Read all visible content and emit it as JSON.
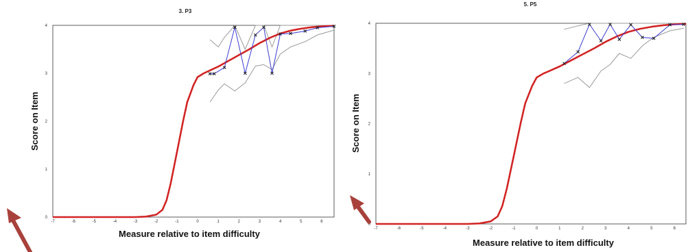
{
  "chart_data": [
    {
      "type": "line",
      "title": "3. P3",
      "xlabel": "Measure relative to item difficulty",
      "ylabel": "Score on Item",
      "xlim": [
        -7,
        6.6
      ],
      "ylim": [
        0,
        4
      ],
      "x_ticks": [
        "-7",
        "-6",
        "-5",
        "-4",
        "-3",
        "-2",
        "-1",
        "0",
        "1",
        "2",
        "3",
        "4",
        "5",
        "6"
      ],
      "y_ticks": [
        "0",
        "1",
        "2",
        "3",
        "4"
      ],
      "grid": false,
      "colors": {
        "expected": "#d92626",
        "empirical": "#3b3bd1",
        "band": "#9a9a9a",
        "marker": "#222222",
        "arrow": "#a8413b"
      },
      "series": [
        {
          "role": "expected",
          "x": [
            -7,
            -4,
            -3,
            -2.5,
            -2,
            -1.7,
            -1.5,
            -1.3,
            -1,
            -0.7,
            -0.5,
            -0.2,
            0,
            0.3,
            0.6,
            1,
            1.5,
            2,
            2.5,
            3,
            3.5,
            4,
            4.5,
            5,
            5.5,
            6,
            6.6
          ],
          "y": [
            0,
            0,
            0,
            0.01,
            0.05,
            0.15,
            0.35,
            0.7,
            1.35,
            2.0,
            2.4,
            2.75,
            2.92,
            3.0,
            3.06,
            3.14,
            3.26,
            3.38,
            3.5,
            3.63,
            3.74,
            3.83,
            3.89,
            3.93,
            3.96,
            3.98,
            3.99
          ]
        },
        {
          "role": "empirical",
          "x": [
            0.6,
            0.8,
            1.3,
            1.8,
            2.3,
            2.8,
            3.2,
            3.6,
            4.0,
            4.5,
            5.2,
            5.8,
            6.6
          ],
          "y": [
            2.99,
            2.99,
            3.12,
            3.96,
            3.0,
            3.8,
            3.96,
            3.0,
            3.82,
            3.83,
            3.88,
            3.95,
            3.98
          ]
        },
        {
          "role": "band-upper",
          "x": [
            0.6,
            1.0,
            1.3,
            1.8,
            2.3,
            2.8,
            3.2,
            3.6,
            4.0,
            4.5,
            5.2,
            5.8,
            6.6
          ],
          "y": [
            3.7,
            3.55,
            3.75,
            4.0,
            3.5,
            4.0,
            4.0,
            3.55,
            4.0,
            4.0,
            4.0,
            4.0,
            4.0
          ]
        },
        {
          "role": "band-lower",
          "x": [
            0.6,
            1.0,
            1.3,
            1.8,
            2.3,
            2.8,
            3.2,
            3.6,
            4.0,
            4.5,
            5.2,
            5.8,
            6.6
          ],
          "y": [
            2.4,
            2.65,
            2.78,
            2.63,
            2.8,
            3.15,
            3.18,
            3.08,
            3.4,
            3.55,
            3.66,
            3.8,
            3.9
          ]
        }
      ]
    },
    {
      "type": "line",
      "title": "5. P5",
      "xlabel": "Measure relative to item difficulty",
      "ylabel": "Score on Item",
      "xlim": [
        -7,
        6.5
      ],
      "ylim": [
        0,
        4
      ],
      "x_ticks": [
        "-7",
        "-6",
        "-5",
        "-4",
        "-3",
        "-2",
        "-1",
        "0",
        "1",
        "2",
        "3",
        "4",
        "5",
        "6"
      ],
      "y_ticks": [
        "0",
        "1",
        "2",
        "3",
        "4"
      ],
      "grid": false,
      "colors": {
        "expected": "#d92626",
        "empirical": "#3b3bd1",
        "band": "#9a9a9a",
        "marker": "#222222",
        "arrow": "#a8413b"
      },
      "series": [
        {
          "role": "expected",
          "x": [
            -7,
            -4,
            -3,
            -2.5,
            -2,
            -1.7,
            -1.5,
            -1.3,
            -1,
            -0.7,
            -0.5,
            -0.2,
            0,
            0.3,
            0.6,
            1,
            1.5,
            2,
            2.5,
            3,
            3.5,
            4,
            4.5,
            5,
            5.5,
            6,
            6.5
          ],
          "y": [
            0,
            0,
            0,
            0.01,
            0.05,
            0.15,
            0.35,
            0.7,
            1.35,
            2.0,
            2.4,
            2.75,
            2.92,
            3.0,
            3.06,
            3.14,
            3.26,
            3.38,
            3.5,
            3.63,
            3.74,
            3.83,
            3.89,
            3.93,
            3.96,
            3.98,
            3.99
          ]
        },
        {
          "role": "empirical",
          "x": [
            1.2,
            1.8,
            2.3,
            2.8,
            3.2,
            3.6,
            4.1,
            4.6,
            5.1,
            5.8,
            6.4
          ],
          "y": [
            3.2,
            3.43,
            3.98,
            3.65,
            3.98,
            3.68,
            3.97,
            3.72,
            3.7,
            3.97,
            3.98
          ]
        },
        {
          "role": "band-upper",
          "x": [
            1.2,
            1.8,
            2.3,
            2.8,
            3.2,
            3.6,
            4.1,
            4.6,
            5.1,
            5.8,
            6.4
          ],
          "y": [
            3.88,
            3.95,
            4.0,
            4.0,
            4.0,
            4.0,
            4.0,
            4.0,
            4.0,
            4.0,
            4.0
          ]
        },
        {
          "role": "band-lower",
          "x": [
            1.2,
            1.8,
            2.3,
            2.8,
            3.2,
            3.6,
            4.1,
            4.6,
            5.1,
            5.8,
            6.4
          ],
          "y": [
            2.8,
            2.92,
            2.72,
            3.05,
            3.18,
            3.4,
            3.3,
            3.55,
            3.72,
            3.85,
            3.9
          ]
        }
      ]
    }
  ]
}
